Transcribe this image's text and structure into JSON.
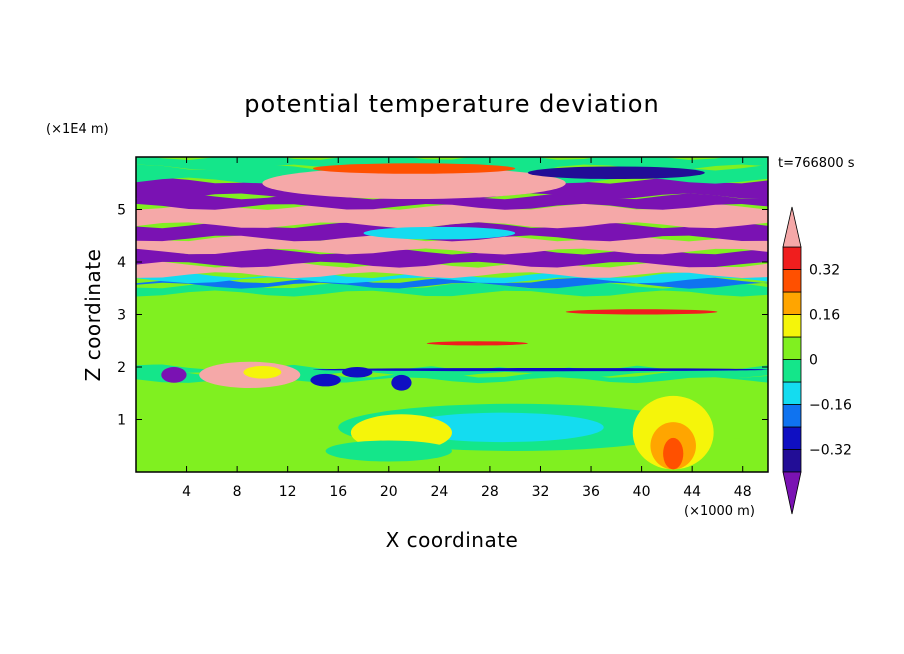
{
  "chart_data": {
    "type": "heatmap",
    "title": "potential temperature deviation",
    "xlabel": "X coordinate",
    "ylabel": "Z coordinate",
    "x_unit": "(×1000 m)",
    "y_unit": "(×1E4 m)",
    "time_label": "t=766800 s",
    "xlim": [
      0,
      50
    ],
    "ylim": [
      0,
      6
    ],
    "x_ticks": [
      4,
      8,
      12,
      16,
      20,
      24,
      28,
      32,
      36,
      40,
      44,
      48
    ],
    "y_ticks": [
      1,
      2,
      3,
      4,
      5
    ],
    "x_tick_labels": [
      "4",
      "8",
      "12",
      "16",
      "20",
      "24",
      "28",
      "32",
      "36",
      "40",
      "44",
      "48"
    ],
    "y_tick_labels": [
      "1",
      "2",
      "3",
      "4",
      "5"
    ],
    "colorbar": {
      "levels": [
        -0.4,
        -0.32,
        -0.24,
        -0.16,
        -0.08,
        0,
        0.08,
        0.16,
        0.24,
        0.32,
        0.4
      ],
      "labels": [
        {
          "value": 0.32,
          "text": "0.32"
        },
        {
          "value": 0.16,
          "text": "0.16"
        },
        {
          "value": 0,
          "text": "0"
        },
        {
          "value": -0.16,
          "text": "−0.16"
        },
        {
          "value": -0.32,
          "text": "−0.32"
        }
      ],
      "colors": [
        "#7a12b3",
        "#220d96",
        "#0f0fc2",
        "#0f73f0",
        "#14dcf0",
        "#14e68a",
        "#80f020",
        "#f5f50a",
        "#ffa500",
        "#ff5000",
        "#f01e1e",
        "#f5a8a8"
      ]
    },
    "bands": [
      {
        "z": [
          0.0,
          0.03
        ],
        "color": "#80f020"
      },
      {
        "z": [
          0.03,
          0.6
        ],
        "color": "#80f020"
      },
      {
        "z": [
          0.6,
          1.75
        ],
        "color": "#80f020"
      },
      {
        "z": [
          1.75,
          1.85
        ],
        "color": "#14e68a"
      },
      {
        "z": [
          1.85,
          2.0
        ],
        "color": "#14e68a"
      },
      {
        "z": [
          2.0,
          2.6
        ],
        "color": "#80f020"
      },
      {
        "z": [
          2.6,
          3.4
        ],
        "color": "#80f020"
      },
      {
        "z": [
          3.4,
          3.55
        ],
        "color": "#14e68a"
      },
      {
        "z": [
          3.55,
          3.65
        ],
        "color": "#0f73f0"
      },
      {
        "z": [
          3.65,
          3.75
        ],
        "color": "#14dcf0"
      },
      {
        "z": [
          3.75,
          3.95
        ],
        "color": "#f5a8a8"
      },
      {
        "z": [
          3.95,
          4.2
        ],
        "color": "#7a12b3"
      },
      {
        "z": [
          4.2,
          4.45
        ],
        "color": "#f5a8a8"
      },
      {
        "z": [
          4.45,
          4.7
        ],
        "color": "#7a12b3"
      },
      {
        "z": [
          4.7,
          5.05
        ],
        "color": "#f5a8a8"
      },
      {
        "z": [
          5.05,
          5.25
        ],
        "color": "#7a12b3"
      },
      {
        "z": [
          5.25,
          5.55
        ],
        "color": "#7a12b3"
      },
      {
        "z": [
          5.55,
          5.8
        ],
        "color": "#14e68a"
      },
      {
        "z": [
          5.8,
          6.0
        ],
        "color": "#14e68a"
      }
    ],
    "features": [
      {
        "shape": "ellipse",
        "x": 30,
        "z": 0.85,
        "rx": 14,
        "rz": 0.45,
        "color": "#14e68a"
      },
      {
        "shape": "ellipse",
        "x": 29,
        "z": 0.85,
        "rx": 8,
        "rz": 0.28,
        "color": "#14dcf0"
      },
      {
        "shape": "ellipse",
        "x": 42.5,
        "z": 0.75,
        "rx": 3.2,
        "rz": 0.7,
        "color": "#f5f50a"
      },
      {
        "shape": "ellipse",
        "x": 42.5,
        "z": 0.5,
        "rx": 1.8,
        "rz": 0.45,
        "color": "#ffa500"
      },
      {
        "shape": "ellipse",
        "x": 42.5,
        "z": 0.35,
        "rx": 0.8,
        "rz": 0.3,
        "color": "#ff5000"
      },
      {
        "shape": "ellipse",
        "x": 21,
        "z": 0.75,
        "rx": 4,
        "rz": 0.35,
        "color": "#f5f50a"
      },
      {
        "shape": "ellipse",
        "x": 20,
        "z": 0.4,
        "rx": 5,
        "rz": 0.2,
        "color": "#14e68a"
      },
      {
        "shape": "ellipse",
        "x": 9,
        "z": 1.85,
        "rx": 4,
        "rz": 0.25,
        "color": "#f5a8a8"
      },
      {
        "shape": "ellipse",
        "x": 10,
        "z": 1.9,
        "rx": 1.5,
        "rz": 0.12,
        "color": "#f5f50a"
      },
      {
        "shape": "ellipse",
        "x": 3,
        "z": 1.85,
        "rx": 1,
        "rz": 0.15,
        "color": "#7a12b3"
      },
      {
        "shape": "ellipse",
        "x": 15,
        "z": 1.75,
        "rx": 1.2,
        "rz": 0.12,
        "color": "#0f0fc2"
      },
      {
        "shape": "ellipse",
        "x": 21,
        "z": 1.7,
        "rx": 0.8,
        "rz": 0.15,
        "color": "#0f0fc2"
      },
      {
        "shape": "ellipse",
        "x": 17.5,
        "z": 1.9,
        "rx": 1.2,
        "rz": 0.1,
        "color": "#0f0fc2"
      },
      {
        "shape": "ellipse",
        "x": 32,
        "z": 1.95,
        "rx": 18,
        "rz": 0.03,
        "color": "#0f0fc2"
      },
      {
        "shape": "ellipse",
        "x": 22,
        "z": 5.5,
        "rx": 12,
        "rz": 0.3,
        "color": "#f5a8a8"
      },
      {
        "shape": "ellipse",
        "x": 22,
        "z": 5.78,
        "rx": 8,
        "rz": 0.1,
        "color": "#ff5000"
      },
      {
        "shape": "ellipse",
        "x": 38,
        "z": 5.7,
        "rx": 7,
        "rz": 0.12,
        "color": "#220d96"
      },
      {
        "shape": "ellipse",
        "x": 24,
        "z": 4.55,
        "rx": 6,
        "rz": 0.12,
        "color": "#14dcf0"
      },
      {
        "shape": "ellipse",
        "x": 40,
        "z": 3.05,
        "rx": 6,
        "rz": 0.05,
        "color": "#f01e1e"
      },
      {
        "shape": "ellipse",
        "x": 27,
        "z": 2.45,
        "rx": 4,
        "rz": 0.04,
        "color": "#f01e1e"
      }
    ]
  }
}
